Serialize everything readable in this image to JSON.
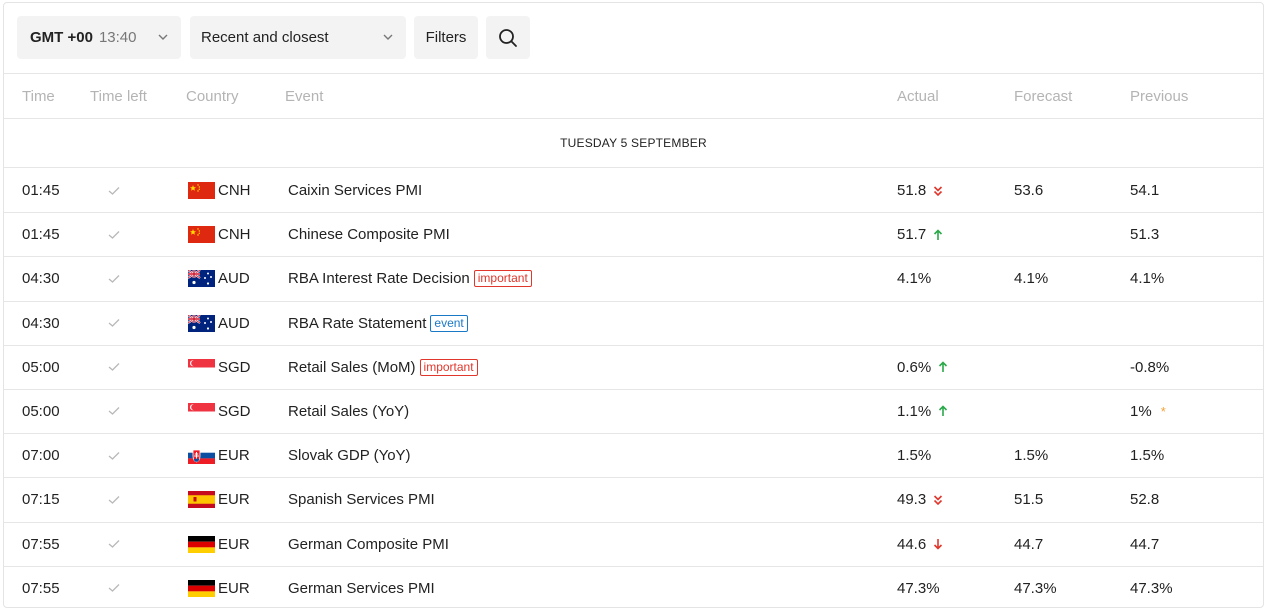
{
  "toolbar": {
    "timezone_label": "GMT +00",
    "timezone_time": "13:40",
    "sort_label": "Recent and closest",
    "filters_label": "Filters"
  },
  "columns": {
    "time": "Time",
    "time_left": "Time left",
    "country": "Country",
    "event": "Event",
    "actual": "Actual",
    "forecast": "Forecast",
    "previous": "Previous"
  },
  "date_header": "TUESDAY 5 SEPTEMBER",
  "colors": {
    "important": "#e0362b",
    "event_badge": "#1a79c7",
    "up": "#2aa84a",
    "down": "#e0362b",
    "star": "#f0a23a"
  },
  "rows": [
    {
      "time": "01:45",
      "flag": "cn",
      "currency": "CNH",
      "event": "Caixin Services PMI",
      "badge": "",
      "badge_type": "",
      "actual": "51.8",
      "indicator": "double-down-icon",
      "forecast": "53.6",
      "previous": "54.1",
      "previous_mark": ""
    },
    {
      "time": "01:45",
      "flag": "cn",
      "currency": "CNH",
      "event": "Chinese Composite PMI",
      "badge": "",
      "badge_type": "",
      "actual": "51.7",
      "indicator": "arrow-up-icon",
      "forecast": "",
      "previous": "51.3",
      "previous_mark": ""
    },
    {
      "time": "04:30",
      "flag": "au",
      "currency": "AUD",
      "event": "RBA Interest Rate Decision",
      "badge": "important",
      "badge_type": "important",
      "actual": "4.1%",
      "indicator": "",
      "forecast": "4.1%",
      "previous": "4.1%",
      "previous_mark": ""
    },
    {
      "time": "04:30",
      "flag": "au",
      "currency": "AUD",
      "event": "RBA Rate Statement",
      "badge": "event",
      "badge_type": "event",
      "actual": "",
      "indicator": "",
      "forecast": "",
      "previous": "",
      "previous_mark": ""
    },
    {
      "time": "05:00",
      "flag": "sg",
      "currency": "SGD",
      "event": "Retail Sales (MoM)",
      "badge": "important",
      "badge_type": "important",
      "actual": "0.6%",
      "indicator": "arrow-up-icon",
      "forecast": "",
      "previous": "-0.8%",
      "previous_mark": ""
    },
    {
      "time": "05:00",
      "flag": "sg",
      "currency": "SGD",
      "event": "Retail Sales (YoY)",
      "badge": "",
      "badge_type": "",
      "actual": "1.1%",
      "indicator": "arrow-up-icon",
      "forecast": "",
      "previous": "1%",
      "previous_mark": "*"
    },
    {
      "time": "07:00",
      "flag": "sk",
      "currency": "EUR",
      "event": "Slovak GDP (YoY)",
      "badge": "",
      "badge_type": "",
      "actual": "1.5%",
      "indicator": "",
      "forecast": "1.5%",
      "previous": "1.5%",
      "previous_mark": ""
    },
    {
      "time": "07:15",
      "flag": "es",
      "currency": "EUR",
      "event": "Spanish Services PMI",
      "badge": "",
      "badge_type": "",
      "actual": "49.3",
      "indicator": "double-down-icon",
      "forecast": "51.5",
      "previous": "52.8",
      "previous_mark": ""
    },
    {
      "time": "07:55",
      "flag": "de",
      "currency": "EUR",
      "event": "German Composite PMI",
      "badge": "",
      "badge_type": "",
      "actual": "44.6",
      "indicator": "arrow-down-icon",
      "forecast": "44.7",
      "previous": "44.7",
      "previous_mark": ""
    },
    {
      "time": "07:55",
      "flag": "de",
      "currency": "EUR",
      "event": "German Services PMI",
      "badge": "",
      "badge_type": "",
      "actual": "47.3%",
      "indicator": "",
      "forecast": "47.3%",
      "previous": "47.3%",
      "previous_mark": ""
    }
  ]
}
